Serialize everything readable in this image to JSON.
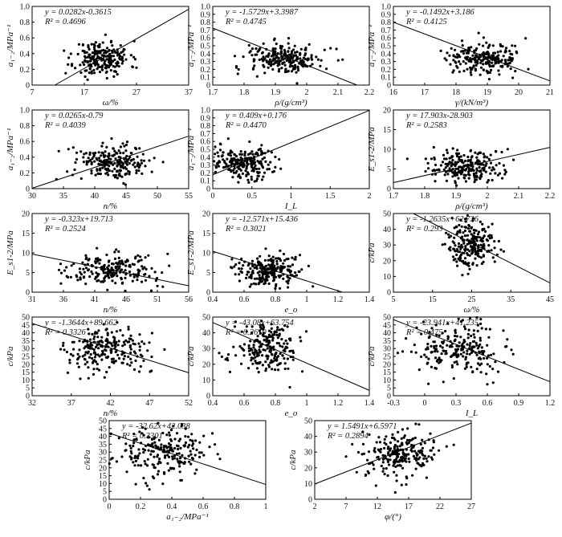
{
  "chart_data": [
    {
      "type": "scatter",
      "ylabel": "a₁₋₂/MPa⁻¹",
      "xlabel": "ω/%",
      "xlim": [
        7,
        47
      ],
      "ylim": [
        0,
        1.0
      ],
      "xticks": [
        "7",
        "17",
        "27",
        "37"
      ],
      "yticks": [
        "0",
        "0.2",
        "0.4",
        "0.6",
        "0.8",
        "1.0"
      ],
      "equation": "y = 0.0282x-0.3615",
      "r2": "R² = 0.4696",
      "slope": 0.0282,
      "intercept": -0.3615,
      "cloud": {
        "cx": 25,
        "sx": 3.5,
        "cy": 0.34,
        "sy": 0.11,
        "n": 220,
        "seed": 11
      }
    },
    {
      "type": "scatter",
      "ylabel": "a₁₋₂/MPa⁻¹",
      "xlabel": "ρ/(g/cm³)",
      "xlim": [
        1.7,
        2.2
      ],
      "ylim": [
        0,
        1.0
      ],
      "xticks": [
        "1.7",
        "1.8",
        "1.9",
        "2",
        "2.1",
        "2.2"
      ],
      "yticks": [
        "0",
        "0.1",
        "0.2",
        "0.3",
        "0.4",
        "0.5",
        "0.6",
        "0.7",
        "0.8",
        "0.9",
        "1.0"
      ],
      "equation": "y = -1.5729x+3.3987",
      "r2": "R² = 0.4745",
      "slope": -1.5729,
      "intercept": 3.3987,
      "cloud": {
        "cx": 1.93,
        "sx": 0.06,
        "cy": 0.33,
        "sy": 0.1,
        "n": 220,
        "seed": 12
      }
    },
    {
      "type": "scatter",
      "ylabel": "a₁₋₂/MPa⁻¹",
      "xlabel": "γ/(kN/m³)",
      "xlim": [
        16,
        21
      ],
      "ylim": [
        0,
        1.0
      ],
      "xticks": [
        "16",
        "17",
        "18",
        "19",
        "20",
        "21"
      ],
      "yticks": [
        "0",
        "0.1",
        "0.2",
        "0.3",
        "0.4",
        "0.5",
        "0.6",
        "0.7",
        "0.8",
        "0.9",
        "1.0"
      ],
      "equation": "y = -0.1492x+3.186",
      "r2": "R² = 0.4125",
      "slope": -0.1492,
      "intercept": 3.186,
      "cloud": {
        "cx": 18.9,
        "sx": 0.6,
        "cy": 0.33,
        "sy": 0.1,
        "n": 220,
        "seed": 13
      }
    },
    {
      "type": "scatter",
      "ylabel": "a₁₋₂/MPa⁻¹",
      "xlabel": "n/%",
      "xlim": [
        30,
        55
      ],
      "ylim": [
        0,
        1.0
      ],
      "xticks": [
        "30",
        "35",
        "40",
        "45",
        "50",
        "55"
      ],
      "yticks": [
        "0",
        "0.2",
        "0.4",
        "0.6",
        "0.8",
        "1.0"
      ],
      "equation": "y = 0.0265x-0.79",
      "r2": "R² = 0.4039",
      "slope": 0.0265,
      "intercept": -0.79,
      "cloud": {
        "cx": 43,
        "sx": 3,
        "cy": 0.34,
        "sy": 0.11,
        "n": 220,
        "seed": 14
      }
    },
    {
      "type": "scatter",
      "ylabel": "a₁₋₂/MPa⁻¹",
      "xlabel": "I_L",
      "xlim": [
        0,
        2
      ],
      "ylim": [
        0,
        1.0
      ],
      "xticks": [
        "0",
        "0.5",
        "1",
        "1.5",
        "2"
      ],
      "yticks": [
        "0",
        "0.1",
        "0.2",
        "0.3",
        "0.4",
        "0.5",
        "0.6",
        "0.7",
        "0.8",
        "0.9",
        "1.0"
      ],
      "equation": "y = 0.409x+0.176",
      "r2": "R² = 0.4470",
      "slope": 0.409,
      "intercept": 0.176,
      "cloud": {
        "cx": 0.4,
        "sx": 0.2,
        "cy": 0.34,
        "sy": 0.1,
        "n": 220,
        "seed": 15
      }
    },
    {
      "type": "scatter",
      "ylabel": "E_s1-2/MPa",
      "xlabel": "ρ/(g/cm³)",
      "xlim": [
        1.7,
        2.2
      ],
      "ylim": [
        0,
        20
      ],
      "xticks": [
        "1.7",
        "1.8",
        "1.9",
        "2",
        "2.1",
        "2.2"
      ],
      "yticks": [
        "0",
        "5",
        "10",
        "15",
        "20"
      ],
      "equation": "y = 17.903x-28.903",
      "r2": "R² = 0.2583",
      "slope": 17.903,
      "intercept": -28.903,
      "cloud": {
        "cx": 1.93,
        "sx": 0.06,
        "cy": 5.5,
        "sy": 2.2,
        "n": 220,
        "seed": 16
      }
    },
    {
      "type": "scatter",
      "ylabel": "E_s1-2/MPa",
      "xlabel": "n/%",
      "xlim": [
        31,
        56
      ],
      "ylim": [
        0,
        20
      ],
      "xticks": [
        "31",
        "36",
        "41",
        "46",
        "51",
        "56"
      ],
      "yticks": [
        "0",
        "5",
        "10",
        "15",
        "20"
      ],
      "equation": "y = -0.323x+19.713",
      "r2": "R² = 0.2524",
      "slope": -0.323,
      "intercept": 19.713,
      "cloud": {
        "cx": 43.5,
        "sx": 3.5,
        "cy": 5.5,
        "sy": 2.0,
        "n": 220,
        "seed": 17
      }
    },
    {
      "type": "scatter",
      "ylabel": "E_s1-2/MPa",
      "xlabel": "e_o",
      "xlim": [
        0.4,
        1.4
      ],
      "ylim": [
        0,
        20
      ],
      "xticks": [
        "0.4",
        "0.6",
        "0.8",
        "1",
        "1.2",
        "1.4"
      ],
      "yticks": [
        "0",
        "5",
        "10",
        "15",
        "20"
      ],
      "equation": "y = -12.571x+15.436",
      "r2": "R² = 0.3021",
      "slope": -12.571,
      "intercept": 15.436,
      "cloud": {
        "cx": 0.75,
        "sx": 0.1,
        "cy": 5.5,
        "sy": 2.0,
        "n": 220,
        "seed": 18
      }
    },
    {
      "type": "scatter",
      "ylabel": "c/kPa",
      "xlabel": "ω/%",
      "xlim": [
        5,
        45
      ],
      "ylim": [
        0,
        50
      ],
      "xticks": [
        "5",
        "15",
        "25",
        "35",
        "45"
      ],
      "yticks": [
        "0",
        "10",
        "20",
        "30",
        "40",
        "50"
      ],
      "equation": "y = -1.2635x+62.736",
      "r2": "R² = 0.293",
      "slope": -1.2635,
      "intercept": 62.736,
      "cloud": {
        "cx": 25,
        "sx": 3,
        "cy": 30,
        "sy": 8,
        "n": 220,
        "seed": 19
      }
    },
    {
      "type": "scatter",
      "ylabel": "c/kPa",
      "xlabel": "n/%",
      "xlim": [
        32,
        55
      ],
      "ylim": [
        0,
        50
      ],
      "xticks": [
        "32",
        "37",
        "42",
        "47",
        "52"
      ],
      "yticks": [
        "0",
        "5",
        "10",
        "15",
        "20",
        "25",
        "30",
        "35",
        "40",
        "45",
        "50"
      ],
      "equation": "y = -1.3644x+89.662",
      "r2": "R² = 0.3326",
      "slope": -1.3644,
      "intercept": 89.662,
      "cloud": {
        "cx": 43,
        "sx": 3,
        "cy": 30,
        "sy": 8,
        "n": 220,
        "seed": 20
      }
    },
    {
      "type": "scatter",
      "ylabel": "c/kPa",
      "xlabel": "e_o",
      "xlim": [
        0.4,
        1.4
      ],
      "ylim": [
        0,
        50
      ],
      "xticks": [
        "0.4",
        "0.6",
        "0.8",
        "1",
        "1.2",
        "1.4"
      ],
      "yticks": [
        "0",
        "10",
        "20",
        "30",
        "40",
        "50"
      ],
      "equation": "y = -43.08x+63.754",
      "r2": "R² = 0.2619",
      "slope": -43.08,
      "intercept": 63.754,
      "cloud": {
        "cx": 0.75,
        "sx": 0.1,
        "cy": 30,
        "sy": 8,
        "n": 220,
        "seed": 21
      }
    },
    {
      "type": "scatter",
      "ylabel": "c/kPa",
      "xlabel": "I_L",
      "xlim": [
        -0.3,
        1.35
      ],
      "ylim": [
        0,
        50
      ],
      "xticks": [
        "-0.3",
        "0",
        "0.3",
        "0.6",
        "0.9",
        "1.2"
      ],
      "yticks": [
        "0",
        "5",
        "10",
        "15",
        "20",
        "25",
        "30",
        "35",
        "40",
        "45",
        "50"
      ],
      "equation": "y = -23.941x+41.235",
      "r2": "R² = 0.475",
      "slope": -23.941,
      "intercept": 41.235,
      "cloud": {
        "cx": 0.4,
        "sx": 0.22,
        "cy": 30,
        "sy": 8,
        "n": 220,
        "seed": 22
      }
    },
    {
      "type": "scatter",
      "ylabel": "c/kPa",
      "xlabel": "a₁₋₂/MPa⁻¹",
      "xlim": [
        0,
        1
      ],
      "ylim": [
        0,
        50
      ],
      "xticks": [
        "0",
        "0.2",
        "0.4",
        "0.6",
        "0.8",
        "1"
      ],
      "yticks": [
        "0",
        "5",
        "10",
        "15",
        "20",
        "25",
        "30",
        "35",
        "40",
        "45",
        "50"
      ],
      "equation": "y = -32.62x+42.038",
      "r2": "R² = 0.3301",
      "slope": -32.62,
      "intercept": 42.038,
      "cloud": {
        "cx": 0.33,
        "sx": 0.15,
        "cy": 30,
        "sy": 8,
        "n": 220,
        "seed": 23
      }
    },
    {
      "type": "scatter",
      "ylabel": "c/kPa",
      "xlabel": "φ/(°)",
      "xlim": [
        2,
        27
      ],
      "ylim": [
        0,
        50
      ],
      "xticks": [
        "2",
        "7",
        "12",
        "17",
        "22",
        "27"
      ],
      "yticks": [
        "0",
        "10",
        "20",
        "30",
        "40",
        "50"
      ],
      "equation": "y = 1.5491x+6.5971",
      "r2": "R² = 0.2894",
      "slope": 1.5491,
      "intercept": 6.5971,
      "cloud": {
        "cx": 15,
        "sx": 3,
        "cy": 28,
        "sy": 8,
        "n": 220,
        "seed": 24
      }
    }
  ]
}
